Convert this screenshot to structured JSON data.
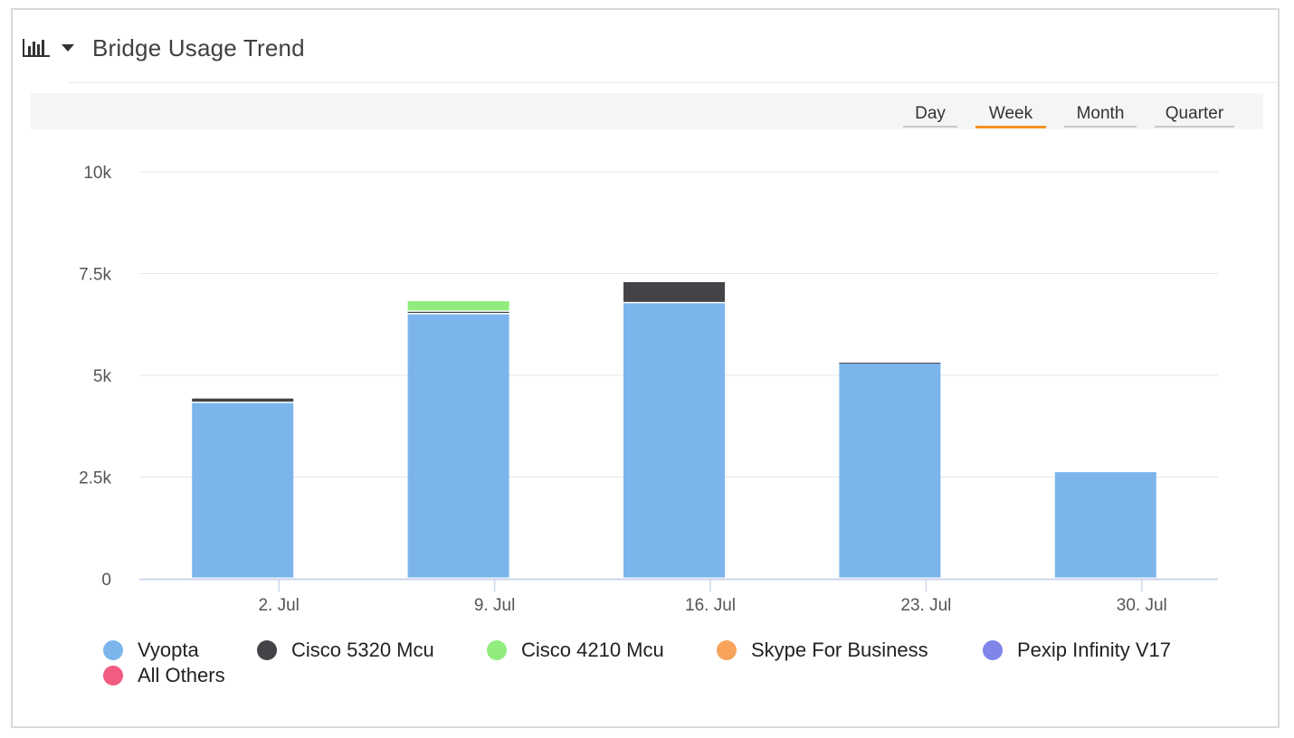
{
  "header": {
    "title": "Bridge Usage Trend",
    "icon": "bar-chart-icon",
    "menu_icon": "caret-down-icon"
  },
  "range_buttons": [
    {
      "label": "Day",
      "active": false
    },
    {
      "label": "Week",
      "active": true
    },
    {
      "label": "Month",
      "active": false
    },
    {
      "label": "Quarter",
      "active": false
    }
  ],
  "colors": {
    "accent": "#f7931e",
    "grid": "#e6e6e6",
    "axis": "#ccd6eb"
  },
  "chart_data": {
    "type": "bar",
    "stacked": true,
    "title": "Bridge Usage Trend",
    "xlabel": "",
    "ylabel": "",
    "categories": [
      "2. Jul",
      "9. Jul",
      "16. Jul",
      "23. Jul",
      "30. Jul"
    ],
    "y_ticks": [
      "0",
      "2.5k",
      "5k",
      "7.5k",
      "10k"
    ],
    "ylim": [
      0,
      10000
    ],
    "grid": true,
    "legend_position": "bottom",
    "series": [
      {
        "name": "Vyopta",
        "color": "#7cb5ec",
        "values": [
          4320,
          6500,
          6770,
          5300,
          2620
        ]
      },
      {
        "name": "Cisco 5320 Mcu",
        "color": "#434348",
        "values": [
          110,
          60,
          520,
          10,
          0
        ]
      },
      {
        "name": "Cisco 4210 Mcu",
        "color": "#90ed7d",
        "values": [
          0,
          260,
          0,
          0,
          0
        ]
      },
      {
        "name": "Skype For Business",
        "color": "#f7a35c",
        "values": [
          0,
          0,
          0,
          0,
          0
        ]
      },
      {
        "name": "Pexip Infinity V17",
        "color": "#8085e9",
        "values": [
          0,
          0,
          0,
          0,
          0
        ]
      },
      {
        "name": "All Others",
        "color": "#f15c80",
        "values": [
          0,
          0,
          0,
          0,
          0
        ]
      }
    ]
  }
}
